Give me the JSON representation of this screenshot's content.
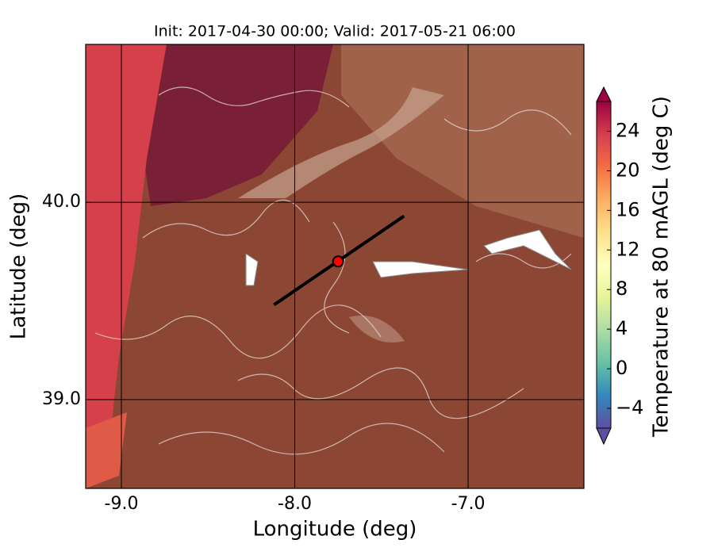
{
  "chart_data": {
    "type": "map",
    "title": "Init: 2017-04-30 00:00; Valid: 2017-05-21 06:00",
    "xlabel": "Longitude (deg)",
    "ylabel": "Latitude (deg)",
    "xlim": [
      -9.206,
      -6.332
    ],
    "ylim": [
      38.55,
      40.8
    ],
    "xticks": [
      {
        "value": -9,
        "label": "-9.0"
      },
      {
        "value": -8,
        "label": "-8.0"
      },
      {
        "value": -7,
        "label": "-7.0"
      }
    ],
    "yticks": [
      {
        "value": 39,
        "label": "39.0"
      },
      {
        "value": 40,
        "label": "40.0"
      }
    ],
    "grid": true,
    "cross_section": {
      "x": [
        -8.12,
        -7.37
      ],
      "y": [
        39.48,
        39.93
      ],
      "color": "#000000"
    },
    "point": {
      "x": -7.75,
      "y": 39.7,
      "color": "#ff0000"
    },
    "colorbar": {
      "label": "Temperature at 80 mAGL (deg C)",
      "range": [
        -6,
        27
      ],
      "ticks": [
        {
          "value": -4,
          "label": "−4"
        },
        0,
        4,
        8,
        12,
        16,
        20,
        24
      ],
      "colors": [
        "#5e4fa2",
        "#3288bd",
        "#66c2a5",
        "#abdda4",
        "#e6f598",
        "#ffffbf",
        "#fee08b",
        "#fdae61",
        "#f46d43",
        "#d53e4f",
        "#9e0142"
      ]
    }
  }
}
